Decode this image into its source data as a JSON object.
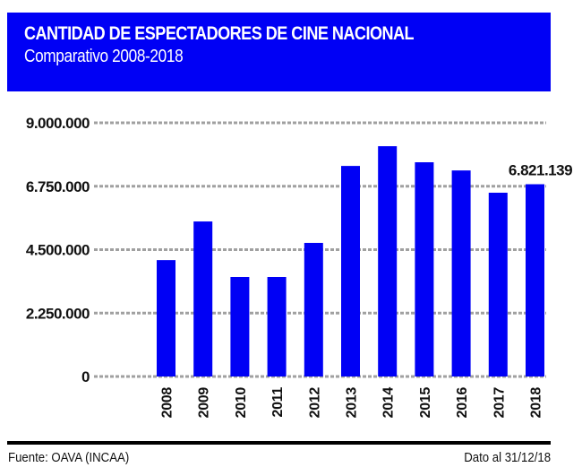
{
  "header": {
    "title": "CANTIDAD DE ESPECTADORES DE CINE NACIONAL",
    "subtitle": "Comparativo 2008-2018"
  },
  "footer": {
    "source": "Fuente: OAVA (INCAA)",
    "date_note": "Dato al 31/12/18"
  },
  "colors": {
    "header_bg": "#0000f5",
    "bar": "#0000f5",
    "grid": "#a0a0a0"
  },
  "chart_data": {
    "type": "bar",
    "title": "CANTIDAD DE ESPECTADORES DE CINE NACIONAL",
    "subtitle": "Comparativo 2008-2018",
    "xlabel": "",
    "ylabel": "",
    "categories": [
      "2008",
      "2009",
      "2010",
      "2011",
      "2012",
      "2013",
      "2014",
      "2015",
      "2016",
      "2017",
      "2018"
    ],
    "values": [
      4130000,
      5500000,
      3530000,
      3530000,
      4740000,
      7470000,
      8170000,
      7600000,
      7310000,
      6520000,
      6821139
    ],
    "ylim": [
      0,
      9000000
    ],
    "yticks": [
      0,
      2250000,
      4500000,
      6750000,
      9000000
    ],
    "ytick_labels": [
      "0",
      "2.250.000",
      "4.500.000",
      "6.750.000",
      "9.000.000"
    ],
    "grid": true,
    "grid_style": "dotted-horizontal",
    "x_label_rotation": -90,
    "annotations": [
      {
        "category": "2018",
        "text": "6.821.139"
      }
    ]
  }
}
